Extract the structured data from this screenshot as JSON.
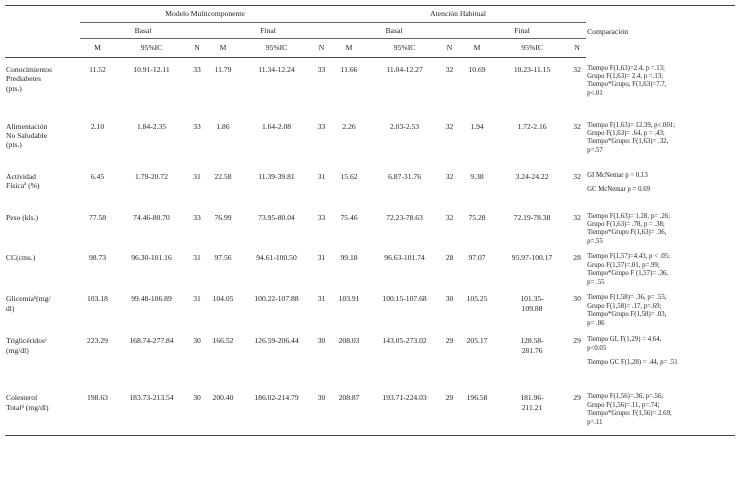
{
  "header": {
    "group_a": "Modelo Multicomponente",
    "group_b": "Atención Habitual",
    "comparison": "Comparación",
    "basal": "Basal",
    "final": "Final",
    "m": "M",
    "ic": "95%IC",
    "n": "N"
  },
  "rows": [
    {
      "var": [
        "Conocimientos",
        "Prediabetes",
        "(pts.)"
      ],
      "cells": [
        "11.52",
        "10.91-12.11",
        "33",
        "11.79",
        "11.34-12.24",
        "33",
        "11.66",
        "11.04-12.27",
        "32",
        "10.69",
        "10.23-11.15",
        "32"
      ],
      "comp": [
        "Tiempo F(1,63)=2.4, p =.13;",
        "Grupo F(1,63)= 2.4, p =.13;",
        "Tiempo*Grupo, F(1,63)=7.7,",
        "p<.01"
      ]
    },
    {
      "var": [
        "Alimentación",
        "No Saludable",
        "(pts.)"
      ],
      "cells": [
        "2.10",
        "1.84-2.35",
        "33",
        "1.86",
        "1.64-2.08",
        "33",
        "2.26",
        "2.03-2.53",
        "32",
        "1.94",
        "1.72-2.16",
        "32"
      ],
      "comp": [
        "Tiempo F(1,63)= 12.39, p<.001;",
        "Grupo F(1,63)= .64, p = .43;",
        "Tiempo*Grupo: F(1,63)= .32,",
        "p=.57"
      ]
    },
    {
      "var": [
        "Actividad",
        "Físicaª (%)"
      ],
      "cells": [
        "6.45",
        "1.79-20.72",
        "31",
        "22.58",
        "11.39-39.81",
        "31",
        "15.62",
        "6.87-31.76",
        "32",
        "9.38",
        "3.24-24.22",
        "32"
      ],
      "comp": [
        "GI McNemar p = 0.13",
        "",
        "GC McNemar p = 0.69"
      ]
    },
    {
      "var": [
        "Peso (kls.)"
      ],
      "cells": [
        "77.58",
        "74.46-80.70",
        "33",
        "76.99",
        "73.95-80.04",
        "33",
        "75.46",
        "72.23-78.63",
        "32",
        "75.28",
        "72.19-78.38",
        "32"
      ],
      "comp": [
        "Tiempo F(1,63)= 1.28, p= .26;",
        "Grupo F(1,63)= .78, p = .38;",
        "Tiempo*Grupo F(1,63)= .36,",
        "p=.55"
      ]
    },
    {
      "var": [
        "CC(cms.)"
      ],
      "cells": [
        "98.73",
        "96.30-101.16",
        "31",
        "97.56",
        "94.61-100.50",
        "31",
        "99.18",
        "96.63-101.74",
        "28",
        "97.07",
        "95.97-100.17",
        "28"
      ],
      "comp": [
        "Tiempo F(1,57)=4.43, p < .05;",
        "Grupo F(1,57)=.01, p=.99;",
        "Tiempo*Grupo F (1,57)= .36,",
        "p= .55"
      ]
    },
    {
      "var": [
        "Glicemiaᵇ(mg/",
        "dl)"
      ],
      "cells": [
        "103.18",
        "99.48-106.89",
        "31",
        "104.05",
        "100.22-107.88",
        "31",
        "103.91",
        "100.15-107.68",
        "30",
        "105.25",
        "101.35-\n109.88",
        "30"
      ],
      "comp": [
        "Tiempo F(1,58)= .36, p= .55;",
        "Grupo F(1,58)= .17, p=.69;",
        "Tiempo*Grupo F(1,58)= .03,",
        "p= .86"
      ]
    },
    {
      "var": [
        "Triglicéridosᶜ",
        "(mg/dl)"
      ],
      "cells": [
        "223.29",
        "168.74-277.84",
        "30",
        "166.52",
        "126.59-206.44",
        "30",
        "208.03",
        "143.05-273.02",
        "29",
        "205.17",
        "128.58-\n281.76",
        "29"
      ],
      "comp": [
        "Tiempo GI, F(1,29) = 4.64,",
        "p<0.05",
        "",
        "Tiempo GC F(1,28) = .44, p= .51"
      ]
    },
    {
      "var": [
        "Colesterol",
        "Totalᵈ (mg/dl)"
      ],
      "cells": [
        "198.63",
        "183.73-213.54",
        "30",
        "200.40",
        "186.02-214.79",
        "30",
        "208.87",
        "193.71-224.03",
        "29",
        "196.58",
        "181.96-\n211.21",
        "29"
      ],
      "comp": [
        "Tiempo F(1,56)=.36, p=.56;",
        "Grupo F(1,56)=.11, p=.74;",
        "Tiempo*Grupo: F(1,56)= 2.69,",
        "p=.11"
      ]
    }
  ]
}
